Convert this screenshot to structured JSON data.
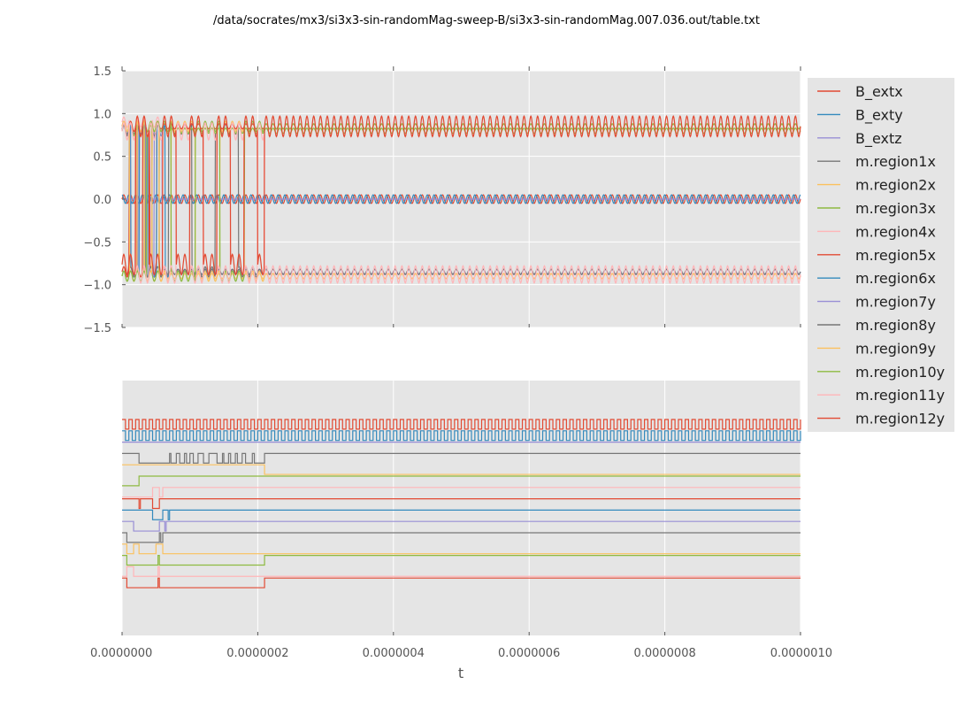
{
  "title": "/data/socrates/mx3/si3x3-sin-randomMag-sweep-B/si3x3-sin-randomMag.007.036.out/table.txt",
  "colors": {
    "panel_bg": "#e5e5e5",
    "grid": "#ffffff",
    "tick": "#555555",
    "legend_bg": "#e5e5e5"
  },
  "chart_data": [
    {
      "type": "line",
      "panel": "top",
      "xlabel": "",
      "ylabel": "",
      "xlim": [
        0,
        1e-06
      ],
      "ylim": [
        -1.5,
        1.5
      ],
      "yticks": [
        "1.5",
        "1.0",
        "0.5",
        "0.0",
        "−0.5",
        "−1.0",
        "−1.5"
      ],
      "ytick_values": [
        1.5,
        1.0,
        0.5,
        0.0,
        -0.5,
        -1.0,
        -1.5
      ],
      "grid": true,
      "description_of_series": "B_ext x/y/z oscillate sinusoidally near 0 (amplitude ~0.05, period ~1e-8). Region magnetizations switch between about +0.8 and -0.85 during t < 2.1e-7, then settle: m.region12y oscillates around +0.85, m.region11y oscillates around -0.88.",
      "series": [
        {
          "name": "B_extx",
          "color": "#e24a33",
          "kind": "sine",
          "offset": 0.0,
          "amplitude": 0.05,
          "period": 1e-08
        },
        {
          "name": "B_exty",
          "color": "#348abd",
          "kind": "sine",
          "offset": 0.0,
          "amplitude": 0.05,
          "period": 1e-08,
          "phase": 1.57
        },
        {
          "name": "B_extz",
          "color": "#988ed5",
          "kind": "constant",
          "offset": 0.0
        },
        {
          "name": "m.region1x",
          "color": "#777777",
          "kind": "switch",
          "levels": [
            0.82,
            -0.85
          ],
          "switch_end": 2e-07
        },
        {
          "name": "m.region2x",
          "color": "#fbc15e",
          "kind": "switch",
          "levels": [
            0.85,
            -0.9
          ],
          "switch_end": 2.1e-07
        },
        {
          "name": "m.region3x",
          "color": "#8eba42",
          "kind": "switch",
          "levels": [
            -0.9,
            0.8
          ],
          "switch_end": 6e-08
        },
        {
          "name": "m.region4x",
          "color": "#ffb5b8",
          "kind": "switch",
          "levels": [
            0.9,
            -0.9
          ],
          "switch_end": 6e-08
        },
        {
          "name": "m.region5x",
          "color": "#e24a33",
          "kind": "switch",
          "levels": [
            -0.85,
            0.85
          ],
          "switch_end": 5.5e-08
        },
        {
          "name": "m.region6x",
          "color": "#348abd",
          "kind": "switch",
          "levels": [
            0.8,
            -0.85
          ],
          "switch_end": 7e-08
        },
        {
          "name": "m.region7y",
          "color": "#988ed5",
          "kind": "switch",
          "levels": [
            0.85,
            -0.85
          ],
          "switch_end": 6.5e-08
        },
        {
          "name": "m.region8y",
          "color": "#777777",
          "kind": "switch",
          "levels": [
            0.8,
            -0.85
          ],
          "switch_end": 6e-08
        },
        {
          "name": "m.region9y",
          "color": "#fbc15e",
          "kind": "switch",
          "levels": [
            0.85,
            -0.9
          ],
          "switch_end": 6e-08
        },
        {
          "name": "m.region10y",
          "color": "#8eba42",
          "kind": "switch",
          "levels": [
            -0.9,
            0.85
          ],
          "switch_end": 2.1e-07
        },
        {
          "name": "m.region11y",
          "color": "#ffb5b8",
          "kind": "osc",
          "offset": -0.88,
          "amplitude": 0.1,
          "period": 1e-08,
          "settle": 2.1e-07
        },
        {
          "name": "m.region12y",
          "color": "#e24a33",
          "kind": "osc",
          "offset": 0.85,
          "amplitude": 0.12,
          "period": 1e-08,
          "settle": 2.1e-07
        }
      ]
    },
    {
      "type": "line",
      "panel": "bottom",
      "xlabel": "t",
      "xlim": [
        0,
        1e-06
      ],
      "xticks": [
        "0.0000000",
        "0.0000002",
        "0.0000004",
        "0.0000006",
        "0.0000008",
        "0.0000010"
      ],
      "xtick_values": [
        0,
        2e-07,
        4e-07,
        6e-07,
        8e-07,
        1e-06
      ],
      "grid": true,
      "ytick_labels_visible": false,
      "description_of_series": "Binary traces of each legend series, vertically stacked, one step-trace per series.",
      "traces": [
        {
          "series": "B_extx",
          "color": "#e24a33",
          "kind": "square",
          "period": 1e-08
        },
        {
          "series": "B_exty",
          "color": "#348abd",
          "kind": "square",
          "period": 1e-08
        },
        {
          "series": "B_extz",
          "color": "#988ed5",
          "kind": "flat"
        },
        {
          "series": "m.region1x",
          "color": "#777777",
          "kind": "pulses",
          "pulses": [
            [
              2.5e-08,
              7e-08
            ],
            [
              7.2e-08,
              8e-08
            ],
            [
              8.5e-08,
              9.2e-08
            ],
            [
              9.5e-08,
              1e-07
            ],
            [
              1.05e-07,
              1.12e-07
            ],
            [
              1.2e-07,
              1.28e-07
            ],
            [
              1.4e-07,
              1.48e-07
            ],
            [
              1.5e-07,
              1.57e-07
            ],
            [
              1.6e-07,
              1.67e-07
            ],
            [
              1.7e-07,
              1.77e-07
            ],
            [
              1.82e-07,
              1.92e-07
            ],
            [
              1.95e-07,
              2.1e-07
            ]
          ]
        },
        {
          "series": "m.region2x",
          "color": "#fbc15e",
          "kind": "step",
          "steps": [
            [
              0,
              1
            ],
            [
              2.1e-07,
              0
            ]
          ]
        },
        {
          "series": "m.region3x",
          "color": "#8eba42",
          "kind": "step",
          "steps": [
            [
              0,
              0
            ],
            [
              2.5e-08,
              1
            ]
          ]
        },
        {
          "series": "m.region4x",
          "color": "#ffb5b8",
          "kind": "step",
          "steps": [
            [
              0,
              0
            ],
            [
              4.5e-08,
              1
            ],
            [
              5.5e-08,
              0
            ],
            [
              6e-08,
              1
            ]
          ]
        },
        {
          "series": "m.region5x",
          "color": "#e24a33",
          "kind": "step",
          "steps": [
            [
              0,
              1
            ],
            [
              2.5e-08,
              0
            ],
            [
              2.7e-08,
              1
            ],
            [
              4.5e-08,
              0
            ],
            [
              5.5e-08,
              1
            ]
          ]
        },
        {
          "series": "m.region6x",
          "color": "#348abd",
          "kind": "step",
          "steps": [
            [
              0,
              1
            ],
            [
              4.5e-08,
              0
            ],
            [
              6e-08,
              1
            ],
            [
              6.8e-08,
              0
            ],
            [
              7e-08,
              1
            ]
          ]
        },
        {
          "series": "m.region7y",
          "color": "#988ed5",
          "kind": "step",
          "steps": [
            [
              0,
              1
            ],
            [
              1.7e-08,
              0
            ],
            [
              5.5e-08,
              1
            ],
            [
              6.3e-08,
              0
            ],
            [
              6.5e-08,
              1
            ]
          ]
        },
        {
          "series": "m.region8y",
          "color": "#777777",
          "kind": "step",
          "steps": [
            [
              0,
              1
            ],
            [
              7e-09,
              0
            ],
            [
              5.5e-08,
              1
            ],
            [
              5.7e-08,
              0
            ],
            [
              6e-08,
              1
            ]
          ]
        },
        {
          "series": "m.region9y",
          "color": "#fbc15e",
          "kind": "step",
          "steps": [
            [
              0,
              1
            ],
            [
              7e-09,
              0
            ],
            [
              1.7e-08,
              1
            ],
            [
              2.5e-08,
              0
            ],
            [
              5e-08,
              1
            ],
            [
              6e-08,
              0
            ]
          ]
        },
        {
          "series": "m.region10y",
          "color": "#8eba42",
          "kind": "step",
          "steps": [
            [
              0,
              1
            ],
            [
              7e-09,
              0
            ],
            [
              5.3e-08,
              1
            ],
            [
              5.5e-08,
              0
            ],
            [
              2.1e-07,
              1
            ]
          ]
        },
        {
          "series": "m.region11y",
          "color": "#ffb5b8",
          "kind": "step",
          "steps": [
            [
              0,
              0
            ],
            [
              7e-09,
              1
            ],
            [
              1.7e-08,
              0
            ],
            [
              5.3e-08,
              1
            ],
            [
              5.5e-08,
              0
            ]
          ]
        },
        {
          "series": "m.region12y",
          "color": "#e24a33",
          "kind": "step",
          "steps": [
            [
              0,
              1
            ],
            [
              7e-09,
              0
            ],
            [
              5.3e-08,
              1
            ],
            [
              5.5e-08,
              0
            ],
            [
              2.1e-07,
              1
            ]
          ]
        }
      ]
    }
  ],
  "legend": {
    "placement": "right",
    "entries": [
      "B_extx",
      "B_exty",
      "B_extz",
      "m.region1x",
      "m.region2x",
      "m.region3x",
      "m.region4x",
      "m.region5x",
      "m.region6x",
      "m.region7y",
      "m.region8y",
      "m.region9y",
      "m.region10y",
      "m.region11y",
      "m.region12y"
    ]
  }
}
